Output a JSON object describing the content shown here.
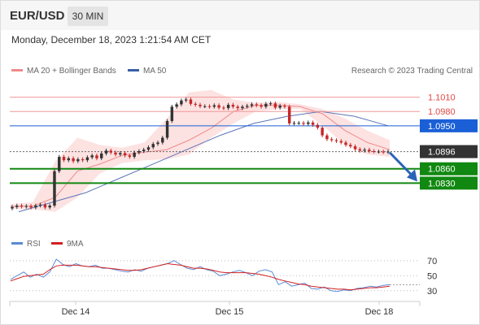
{
  "header": {
    "pair": "EUR/USD",
    "timeframe": "30 MIN",
    "datetime": "Monday, December 18, 2023 1:21:54 AM CET"
  },
  "legend": {
    "bb_label": "MA 20 + Bollinger Bands",
    "ma50_label": "MA 50",
    "copyright": "Research © 2023 Trading Central",
    "rsi_label": "RSI",
    "ma9_label": "9MA"
  },
  "colors": {
    "bb": "#f08a8a",
    "bb_fill": "#fde2e2",
    "ma50": "#3a5fa8",
    "resistance": "#e04848",
    "blue_level": "#1a5fd6",
    "support": "#118811",
    "current": "#333333",
    "candle_up": "#333333",
    "candle_down": "#c62828",
    "arrow": "#2a62b8",
    "rsi": "#5a8ad6",
    "rsi_ma": "#d22020"
  },
  "chart_data": [
    {
      "type": "line",
      "title": "EUR/USD 30 MIN",
      "x_ticks": [
        "Dec 14",
        "Dec 15",
        "Dec 18"
      ],
      "levels": [
        {
          "label": "1.1010",
          "value": 1.101,
          "kind": "resistance"
        },
        {
          "label": "1.0980",
          "value": 1.098,
          "kind": "resistance"
        },
        {
          "label": "1.0950",
          "value": 1.095,
          "kind": "pivot"
        },
        {
          "label": "1.0896",
          "value": 1.0896,
          "kind": "current"
        },
        {
          "label": "1.0860",
          "value": 1.086,
          "kind": "support"
        },
        {
          "label": "1.0830",
          "value": 1.083,
          "kind": "support"
        }
      ],
      "ylim": [
        1.0766,
        1.1045
      ],
      "close_series": [
        1.078,
        1.0783,
        1.0781,
        1.0782,
        1.0779,
        1.0783,
        1.0785,
        1.0779,
        1.0783,
        1.0855,
        1.0885,
        1.0878,
        1.0882,
        1.0876,
        1.088,
        1.0878,
        1.0884,
        1.0888,
        1.0882,
        1.0892,
        1.0898,
        1.0894,
        1.089,
        1.0893,
        1.0888,
        1.0885,
        1.0894,
        1.0897,
        1.09,
        1.0905,
        1.0912,
        1.0915,
        1.0925,
        1.096,
        1.099,
        1.0995,
        1.1003,
        1.1005,
        1.0996,
        1.0994,
        1.0991,
        1.0991,
        1.099,
        1.0993,
        1.0988,
        1.0987,
        1.0994,
        1.099,
        1.0987,
        1.099,
        1.0992,
        1.0995,
        1.0993,
        1.099,
        1.0996,
        1.0997,
        1.0988,
        1.0992,
        1.099,
        1.0955,
        1.0956,
        1.0956,
        1.0954,
        1.0957,
        1.0952,
        1.0946,
        1.093,
        1.0922,
        1.092,
        1.0918,
        1.0915,
        1.091,
        1.0907,
        1.0901,
        1.0898,
        1.09,
        1.0897,
        1.0896,
        1.0896,
        1.0895,
        1.0896
      ],
      "ma50": [
        1.077,
        1.079,
        1.081,
        1.084,
        1.087,
        1.09,
        1.093,
        1.0955,
        1.097,
        1.098,
        1.097,
        1.095
      ],
      "bb_mid": [
        1.0781,
        1.0782,
        1.08,
        1.0855,
        1.087,
        1.0888,
        1.0895,
        1.09,
        1.092,
        1.0945,
        1.098,
        1.0993,
        1.0993,
        1.099,
        1.0975,
        1.094,
        1.0915,
        1.09
      ],
      "bb_upper": [
        1.0786,
        1.079,
        1.0875,
        1.0925,
        1.091,
        1.0904,
        1.0915,
        1.0965,
        1.102,
        1.1025,
        1.1005,
        1.0998,
        1.1,
        1.0995,
        1.0985,
        1.0965,
        1.094,
        1.092
      ],
      "bb_lower": [
        1.0776,
        1.0775,
        1.077,
        1.08,
        1.085,
        1.0872,
        1.0878,
        1.088,
        1.089,
        1.0925,
        1.0955,
        1.098,
        1.0985,
        1.0985,
        1.095,
        1.091,
        1.089,
        1.0885
      ],
      "forecast_arrow": {
        "from": 1.0894,
        "to": 1.083
      }
    },
    {
      "type": "line",
      "title": "RSI",
      "series": [
        {
          "name": "RSI",
          "values": [
            45,
            50,
            55,
            48,
            52,
            48,
            55,
            72,
            65,
            62,
            66,
            63,
            62,
            64,
            60,
            60,
            58,
            56,
            55,
            58,
            56,
            60,
            62,
            64,
            66,
            70,
            65,
            60,
            58,
            62,
            58,
            56,
            50,
            52,
            55,
            57,
            54,
            50,
            56,
            58,
            55,
            38,
            42,
            36,
            38,
            40,
            33,
            32,
            35,
            30,
            29,
            31,
            30,
            33,
            34,
            36,
            35,
            37,
            38
          ]
        },
        {
          "name": "9MA",
          "values": [
            43,
            46,
            49,
            50,
            51,
            52,
            58,
            63,
            64,
            64,
            64,
            63,
            62,
            62,
            61,
            60,
            59,
            58,
            57,
            57,
            58,
            60,
            62,
            64,
            66,
            65,
            64,
            62,
            60,
            60,
            59,
            57,
            55,
            54,
            54,
            54,
            54,
            53,
            52,
            50,
            48,
            45,
            43,
            41,
            39,
            38,
            36,
            35,
            34,
            33,
            32,
            32,
            31,
            32,
            33,
            34,
            34,
            35,
            36
          ]
        }
      ],
      "y_ticks": [
        70,
        50,
        30
      ],
      "ylim": [
        20,
        85
      ],
      "x_ticks": [
        "Dec 14",
        "Dec 15",
        "Dec 18"
      ]
    }
  ]
}
